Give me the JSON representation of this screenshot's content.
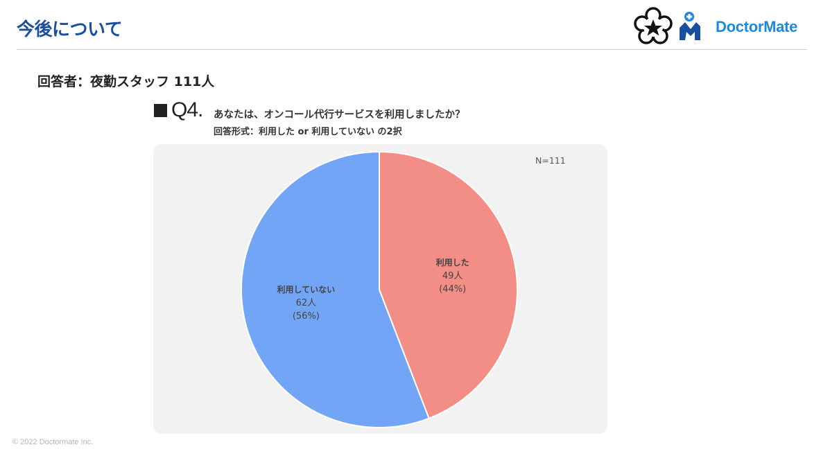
{
  "header": {
    "title": "今後について",
    "brand": "DoctorMate",
    "brand_color": "#1a8ae0",
    "title_color": "#1a4fa0"
  },
  "respondents": "回答者：夜勤スタッフ 111人",
  "question": {
    "number": "Q4.",
    "text": "あなたは、オンコール代行サービスを利用しましたか？",
    "format": "回答形式：利用した or 利用していない の2択"
  },
  "chart_data": {
    "type": "pie",
    "note": "N=111",
    "slices": [
      {
        "label": "利用した",
        "count_label": "49人",
        "percent_label": "(44%)",
        "value": 49,
        "color": "#f28e86"
      },
      {
        "label": "利用していない",
        "count_label": "62人",
        "percent_label": "(56%)",
        "value": 62,
        "color": "#73a5f7"
      }
    ]
  },
  "footer": {
    "copyright": "© 2022 Doctormate Inc."
  }
}
